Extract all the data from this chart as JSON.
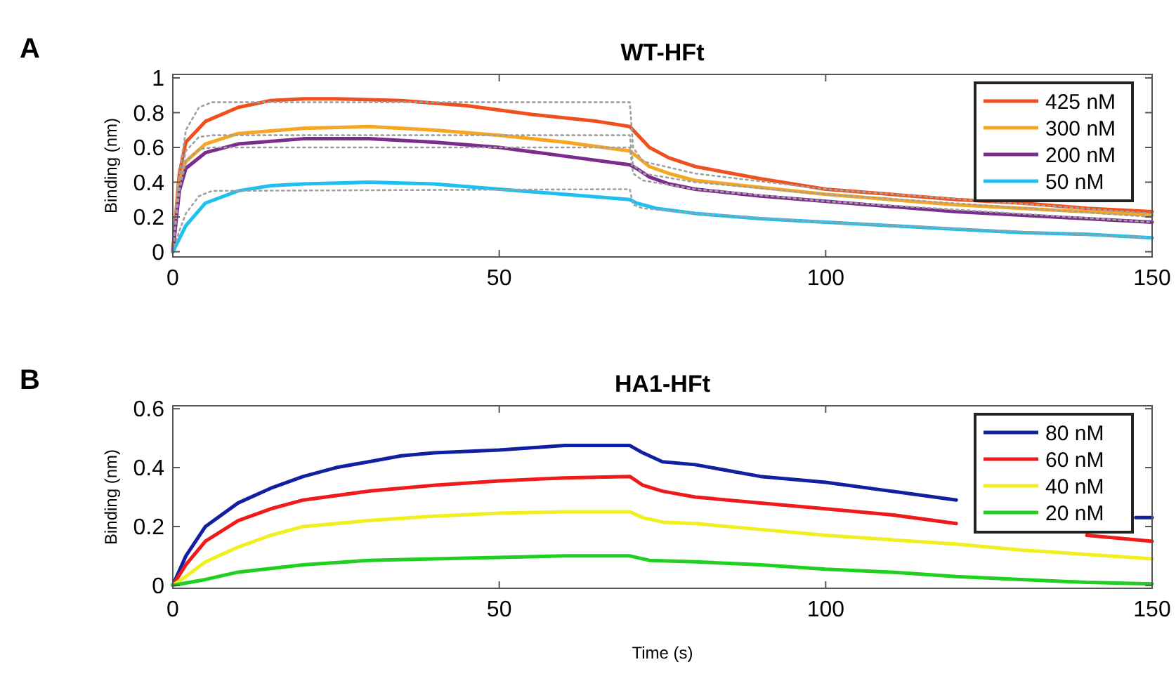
{
  "chart_data": [
    {
      "type": "line",
      "title": "WT-HFt",
      "ylabel": "Binding (nm)",
      "annotations": [
        "A"
      ],
      "xlim": [
        0,
        150
      ],
      "xticks": [
        0,
        50,
        100,
        150
      ],
      "ylim": [
        -0.03,
        1.02
      ],
      "yticks": [
        0,
        0.2,
        0.4,
        0.6,
        0.8,
        1
      ],
      "grid": false,
      "legend": "top right",
      "line_style": "solid",
      "marker": "none",
      "series": [
        {
          "name": "425 nM",
          "color": "#f0501e",
          "x": [
            0,
            1,
            2,
            5,
            10,
            15,
            20,
            25,
            35,
            45,
            55,
            65,
            70,
            71,
            73,
            76,
            80,
            90,
            100,
            110,
            120,
            130,
            140,
            150
          ],
          "values": [
            0,
            0.45,
            0.63,
            0.75,
            0.83,
            0.87,
            0.88,
            0.88,
            0.87,
            0.84,
            0.79,
            0.75,
            0.72,
            0.68,
            0.6,
            0.54,
            0.49,
            0.42,
            0.36,
            0.33,
            0.3,
            0.28,
            0.25,
            0.23
          ]
        },
        {
          "name": "300 nM",
          "color": "#f5a623",
          "x": [
            0,
            1,
            2,
            5,
            10,
            20,
            30,
            40,
            50,
            60,
            70,
            71,
            73,
            76,
            80,
            90,
            100,
            110,
            120,
            130,
            140,
            150
          ],
          "values": [
            0,
            0.4,
            0.52,
            0.62,
            0.68,
            0.71,
            0.72,
            0.7,
            0.67,
            0.63,
            0.58,
            0.55,
            0.49,
            0.45,
            0.41,
            0.37,
            0.33,
            0.3,
            0.27,
            0.25,
            0.23,
            0.21
          ]
        },
        {
          "name": "200 nM",
          "color": "#7b2c8f",
          "x": [
            0,
            1,
            2,
            5,
            10,
            20,
            30,
            40,
            50,
            60,
            70,
            71,
            73,
            76,
            80,
            90,
            100,
            110,
            120,
            130,
            140,
            150
          ],
          "values": [
            0,
            0.35,
            0.48,
            0.57,
            0.62,
            0.65,
            0.65,
            0.63,
            0.6,
            0.55,
            0.5,
            0.48,
            0.43,
            0.39,
            0.36,
            0.32,
            0.29,
            0.26,
            0.23,
            0.21,
            0.19,
            0.17
          ]
        },
        {
          "name": "50 nM",
          "color": "#1ec0f0",
          "x": [
            0,
            2,
            5,
            10,
            15,
            20,
            30,
            40,
            50,
            60,
            70,
            71,
            74,
            80,
            90,
            100,
            110,
            120,
            130,
            140,
            150
          ],
          "values": [
            0,
            0.15,
            0.28,
            0.35,
            0.38,
            0.39,
            0.4,
            0.39,
            0.36,
            0.33,
            0.3,
            0.28,
            0.25,
            0.22,
            0.19,
            0.17,
            0.15,
            0.13,
            0.11,
            0.1,
            0.08
          ]
        },
        {
          "color": "#a0a0a0",
          "line_style": "dotted",
          "x": [
            0,
            1,
            2,
            4,
            6,
            70,
            70.5,
            72,
            80,
            100,
            150
          ],
          "values": [
            0,
            0.45,
            0.7,
            0.83,
            0.86,
            0.86,
            0.6,
            0.52,
            0.45,
            0.36,
            0.22
          ]
        },
        {
          "color": "#a0a0a0",
          "line_style": "dotted",
          "x": [
            0,
            1,
            2,
            4,
            6,
            70,
            70.5,
            72,
            80,
            100,
            150
          ],
          "values": [
            0,
            0.4,
            0.58,
            0.66,
            0.67,
            0.67,
            0.5,
            0.45,
            0.4,
            0.33,
            0.2
          ]
        },
        {
          "color": "#a0a0a0",
          "line_style": "dotted",
          "x": [
            0,
            1,
            2,
            4,
            6,
            70,
            70.5,
            72,
            80,
            100,
            150
          ],
          "values": [
            0,
            0.35,
            0.52,
            0.59,
            0.6,
            0.6,
            0.45,
            0.41,
            0.36,
            0.29,
            0.17
          ]
        },
        {
          "color": "#a0a0a0",
          "line_style": "dotted",
          "x": [
            0,
            1,
            2,
            4,
            6,
            70,
            70.5,
            72,
            80,
            100,
            150
          ],
          "values": [
            0,
            0.12,
            0.22,
            0.32,
            0.35,
            0.36,
            0.27,
            0.25,
            0.22,
            0.17,
            0.08
          ]
        }
      ]
    },
    {
      "type": "line",
      "title": "HA1-HFt",
      "xlabel": "Time (s)",
      "ylabel": "Binding (nm)",
      "annotations": [
        "B"
      ],
      "xlim": [
        0,
        150
      ],
      "xticks": [
        0,
        50,
        100,
        150
      ],
      "ylim": [
        -0.01,
        0.61
      ],
      "yticks": [
        0,
        0.2,
        0.4,
        0.6
      ],
      "grid": false,
      "legend": "top right",
      "line_style": "solid",
      "marker": "none",
      "series": [
        {
          "name": "80 nM",
          "color": "#1020a0",
          "x": [
            0,
            2,
            5,
            10,
            15,
            20,
            25,
            30,
            35,
            40,
            50,
            60,
            70,
            72,
            75,
            80,
            85,
            90,
            100,
            110,
            120,
            130,
            147.5,
            150
          ],
          "values": [
            0,
            0.1,
            0.2,
            0.28,
            0.33,
            0.37,
            0.4,
            0.42,
            0.44,
            0.45,
            0.46,
            0.475,
            0.475,
            0.45,
            0.42,
            0.41,
            0.39,
            0.37,
            0.35,
            0.32,
            0.29,
            null,
            0.23,
            0.23
          ]
        },
        {
          "name": "60 nM",
          "color": "#f01a1a",
          "x": [
            0,
            2,
            5,
            10,
            15,
            20,
            30,
            40,
            50,
            60,
            70,
            72,
            75,
            80,
            90,
            100,
            110,
            120,
            130,
            140,
            150
          ],
          "values": [
            0,
            0.07,
            0.15,
            0.22,
            0.26,
            0.29,
            0.32,
            0.34,
            0.355,
            0.365,
            0.37,
            0.34,
            0.32,
            0.3,
            0.28,
            0.26,
            0.24,
            0.21,
            null,
            0.17,
            0.15
          ]
        },
        {
          "name": "40 nM",
          "color": "#f0f020",
          "x": [
            0,
            2,
            5,
            10,
            15,
            20,
            30,
            40,
            50,
            60,
            70,
            72,
            75,
            80,
            90,
            100,
            110,
            120,
            130,
            140,
            150
          ],
          "values": [
            0,
            0.03,
            0.08,
            0.13,
            0.17,
            0.2,
            0.22,
            0.235,
            0.245,
            0.25,
            0.25,
            0.23,
            0.215,
            0.21,
            0.19,
            0.17,
            0.155,
            0.14,
            0.12,
            0.105,
            0.09
          ]
        },
        {
          "name": "20 nM",
          "color": "#20d020",
          "x": [
            0,
            5,
            10,
            20,
            30,
            40,
            50,
            60,
            70,
            73,
            80,
            90,
            100,
            110,
            120,
            130,
            140,
            150
          ],
          "values": [
            0,
            0.02,
            0.045,
            0.07,
            0.085,
            0.09,
            0.095,
            0.1,
            0.1,
            0.085,
            0.08,
            0.07,
            0.055,
            0.045,
            0.03,
            0.02,
            0.01,
            0.005
          ]
        }
      ]
    }
  ]
}
